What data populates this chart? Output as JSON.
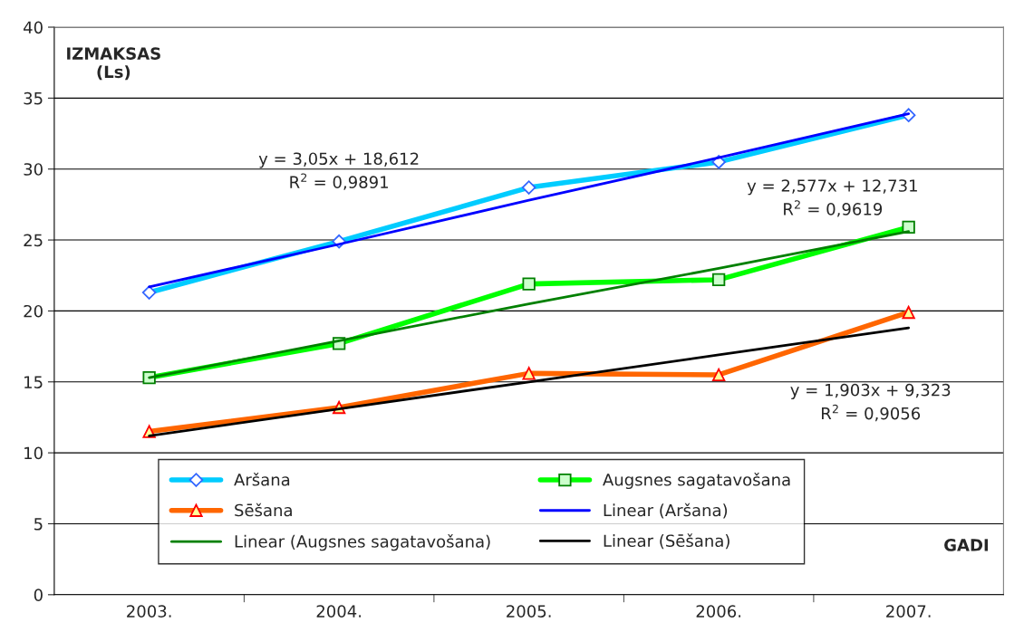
{
  "chart_data": {
    "type": "line",
    "ylabel": "IZMAKSAS\n(Ls)",
    "xlabel": "GADI",
    "categories": [
      "2003.",
      "2004.",
      "2005.",
      "2006.",
      "2007."
    ],
    "ylim": [
      0,
      40
    ],
    "yticks": [
      0,
      5,
      10,
      15,
      20,
      25,
      30,
      35,
      40
    ],
    "grid": "y",
    "legend": "bottom",
    "series": [
      {
        "name": "Aršana",
        "color": "#00ccff",
        "marker": "diamond",
        "values": [
          21.3,
          24.9,
          28.7,
          30.5,
          33.8
        ]
      },
      {
        "name": "Augsnes sagatavošana",
        "color": "#00ff00",
        "marker": "square",
        "values": [
          15.3,
          17.7,
          21.9,
          22.2,
          25.9
        ]
      },
      {
        "name": "Sēšana",
        "color": "#ff6600",
        "marker": "triangle",
        "values": [
          11.5,
          13.2,
          15.6,
          15.5,
          19.9
        ]
      },
      {
        "name": "Linear (Aršana)",
        "color": "#0000ff",
        "marker": "none",
        "values": [
          21.7,
          24.7,
          27.8,
          30.8,
          33.9
        ]
      },
      {
        "name": "Linear (Augsnes sagatavošana)",
        "color": "#008000",
        "marker": "none",
        "values": [
          15.3,
          17.9,
          20.5,
          23.0,
          25.6
        ]
      },
      {
        "name": "Linear (Sēšana)",
        "color": "#000000",
        "marker": "none",
        "values": [
          11.2,
          13.1,
          15.0,
          16.9,
          18.8
        ]
      }
    ],
    "annotations": [
      "y = 3,05x + 18,612\nR$^{2}$ = 0,9891",
      "y = 2,577x + 12,731\nR$^{2}$ = 0,9619",
      "y = 1,903x + 9,323\nR$^{2}$ = 0,9056"
    ]
  }
}
